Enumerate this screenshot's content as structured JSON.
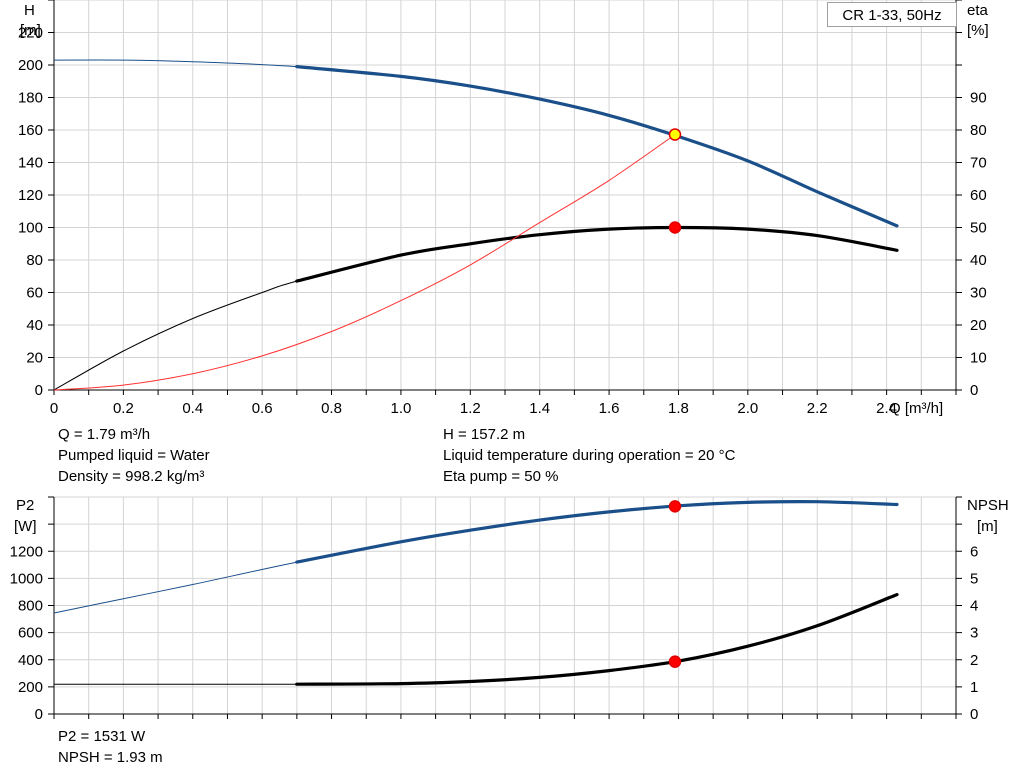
{
  "chart_data": [
    {
      "type": "line",
      "title": "",
      "x_axis": {
        "label": "Q [m³/h]",
        "range": [
          0,
          2.6
        ],
        "ticks": [
          0,
          0.2,
          0.4,
          0.6,
          0.8,
          1.0,
          1.2,
          1.4,
          1.6,
          1.8,
          2.0,
          2.2,
          2.4
        ],
        "tick_labels": [
          "0",
          "0.2",
          "0.4",
          "0.6",
          "0.8",
          "1.0",
          "1.2",
          "1.4",
          "1.6",
          "1.8",
          "2.0",
          "2.2",
          "2.4"
        ]
      },
      "y_left": {
        "label_line1": "H",
        "label_line2": "[m]",
        "range": [
          0,
          240
        ],
        "ticks": [
          0,
          20,
          40,
          60,
          80,
          100,
          120,
          140,
          160,
          180,
          200,
          220
        ]
      },
      "y_right": {
        "label_line1": "eta",
        "label_line2": "[%]",
        "range": [
          0,
          120
        ],
        "ticks": [
          0,
          10,
          20,
          30,
          40,
          50,
          60,
          70,
          80,
          90
        ]
      },
      "grid": true,
      "legend_box": "CR 1-33, 50Hz",
      "series": [
        {
          "id": "head",
          "axis": "left",
          "color": "#1a4f8a",
          "bold_from_x": 0.7,
          "x": [
            0,
            0.2,
            0.4,
            0.7,
            1.0,
            1.2,
            1.4,
            1.6,
            1.8,
            2.0,
            2.2,
            2.43
          ],
          "y": [
            203,
            203,
            202,
            199,
            193,
            187,
            179,
            169,
            156,
            141,
            122,
            101
          ]
        },
        {
          "id": "efficiency",
          "axis": "right",
          "color": "#000000",
          "bold_from_x": 0.7,
          "x": [
            0,
            0.2,
            0.4,
            0.6,
            0.7,
            1.0,
            1.2,
            1.4,
            1.6,
            1.8,
            2.0,
            2.2,
            2.43
          ],
          "y": [
            0,
            12,
            22,
            30,
            33.5,
            41.5,
            45,
            47.8,
            49.5,
            50,
            49.5,
            47.5,
            43
          ]
        },
        {
          "id": "system-curve",
          "axis": "left",
          "color": "#ff3030",
          "bold_from_x": null,
          "x": [
            0,
            0.2,
            0.4,
            0.6,
            0.8,
            1.0,
            1.2,
            1.4,
            1.6,
            1.79
          ],
          "y": [
            0,
            3,
            10,
            21,
            36,
            55,
            77,
            103,
            129,
            157.2
          ]
        }
      ],
      "duty_points": [
        {
          "axis": "left",
          "x": 1.79,
          "y": 157.2,
          "fill": "#ffff00",
          "stroke": "#e00000"
        },
        {
          "axis": "right",
          "x": 1.79,
          "y": 50,
          "fill": "#ff0000",
          "stroke": "#e00000"
        }
      ]
    },
    {
      "type": "line",
      "title": "",
      "x_axis": {
        "range": [
          0,
          2.6
        ]
      },
      "y_left": {
        "label_line1": "P2",
        "label_line2": "[W]",
        "range": [
          0,
          1600
        ],
        "ticks": [
          0,
          200,
          400,
          600,
          800,
          1000,
          1200
        ]
      },
      "y_right": {
        "label_line1": "NPSH",
        "label_line2": "[m]",
        "range": [
          0,
          8
        ],
        "ticks": [
          0,
          1,
          2,
          3,
          4,
          5,
          6
        ]
      },
      "grid": true,
      "series": [
        {
          "id": "power",
          "axis": "left",
          "color": "#1a4f8a",
          "bold_from_x": 0.7,
          "x": [
            0,
            0.2,
            0.4,
            0.7,
            1.0,
            1.2,
            1.4,
            1.6,
            1.8,
            2.0,
            2.2,
            2.43
          ],
          "y": [
            745,
            850,
            955,
            1120,
            1270,
            1355,
            1430,
            1490,
            1535,
            1560,
            1565,
            1545
          ]
        },
        {
          "id": "npsh",
          "axis": "right",
          "color": "#000000",
          "bold_from_x": 0.7,
          "x": [
            0,
            0.2,
            0.4,
            0.7,
            1.0,
            1.2,
            1.4,
            1.6,
            1.8,
            2.0,
            2.2,
            2.43
          ],
          "y": [
            1.1,
            1.1,
            1.1,
            1.1,
            1.12,
            1.2,
            1.35,
            1.6,
            1.95,
            2.5,
            3.25,
            4.4
          ]
        }
      ],
      "duty_points": [
        {
          "axis": "left",
          "x": 1.79,
          "y": 1531,
          "fill": "#ff0000",
          "stroke": "#e00000"
        },
        {
          "axis": "right",
          "x": 1.79,
          "y": 1.93,
          "fill": "#ff0000",
          "stroke": "#e00000"
        }
      ]
    }
  ],
  "info_top_left": [
    "Q = 1.79 m³/h",
    "Pumped liquid = Water",
    "Density = 998.2 kg/m³"
  ],
  "info_top_right": [
    "H = 157.2 m",
    "Liquid temperature during operation = 20 °C",
    "Eta pump = 50 %"
  ],
  "info_bottom": [
    "P2 = 1531 W",
    "NPSH = 1.93 m"
  ]
}
